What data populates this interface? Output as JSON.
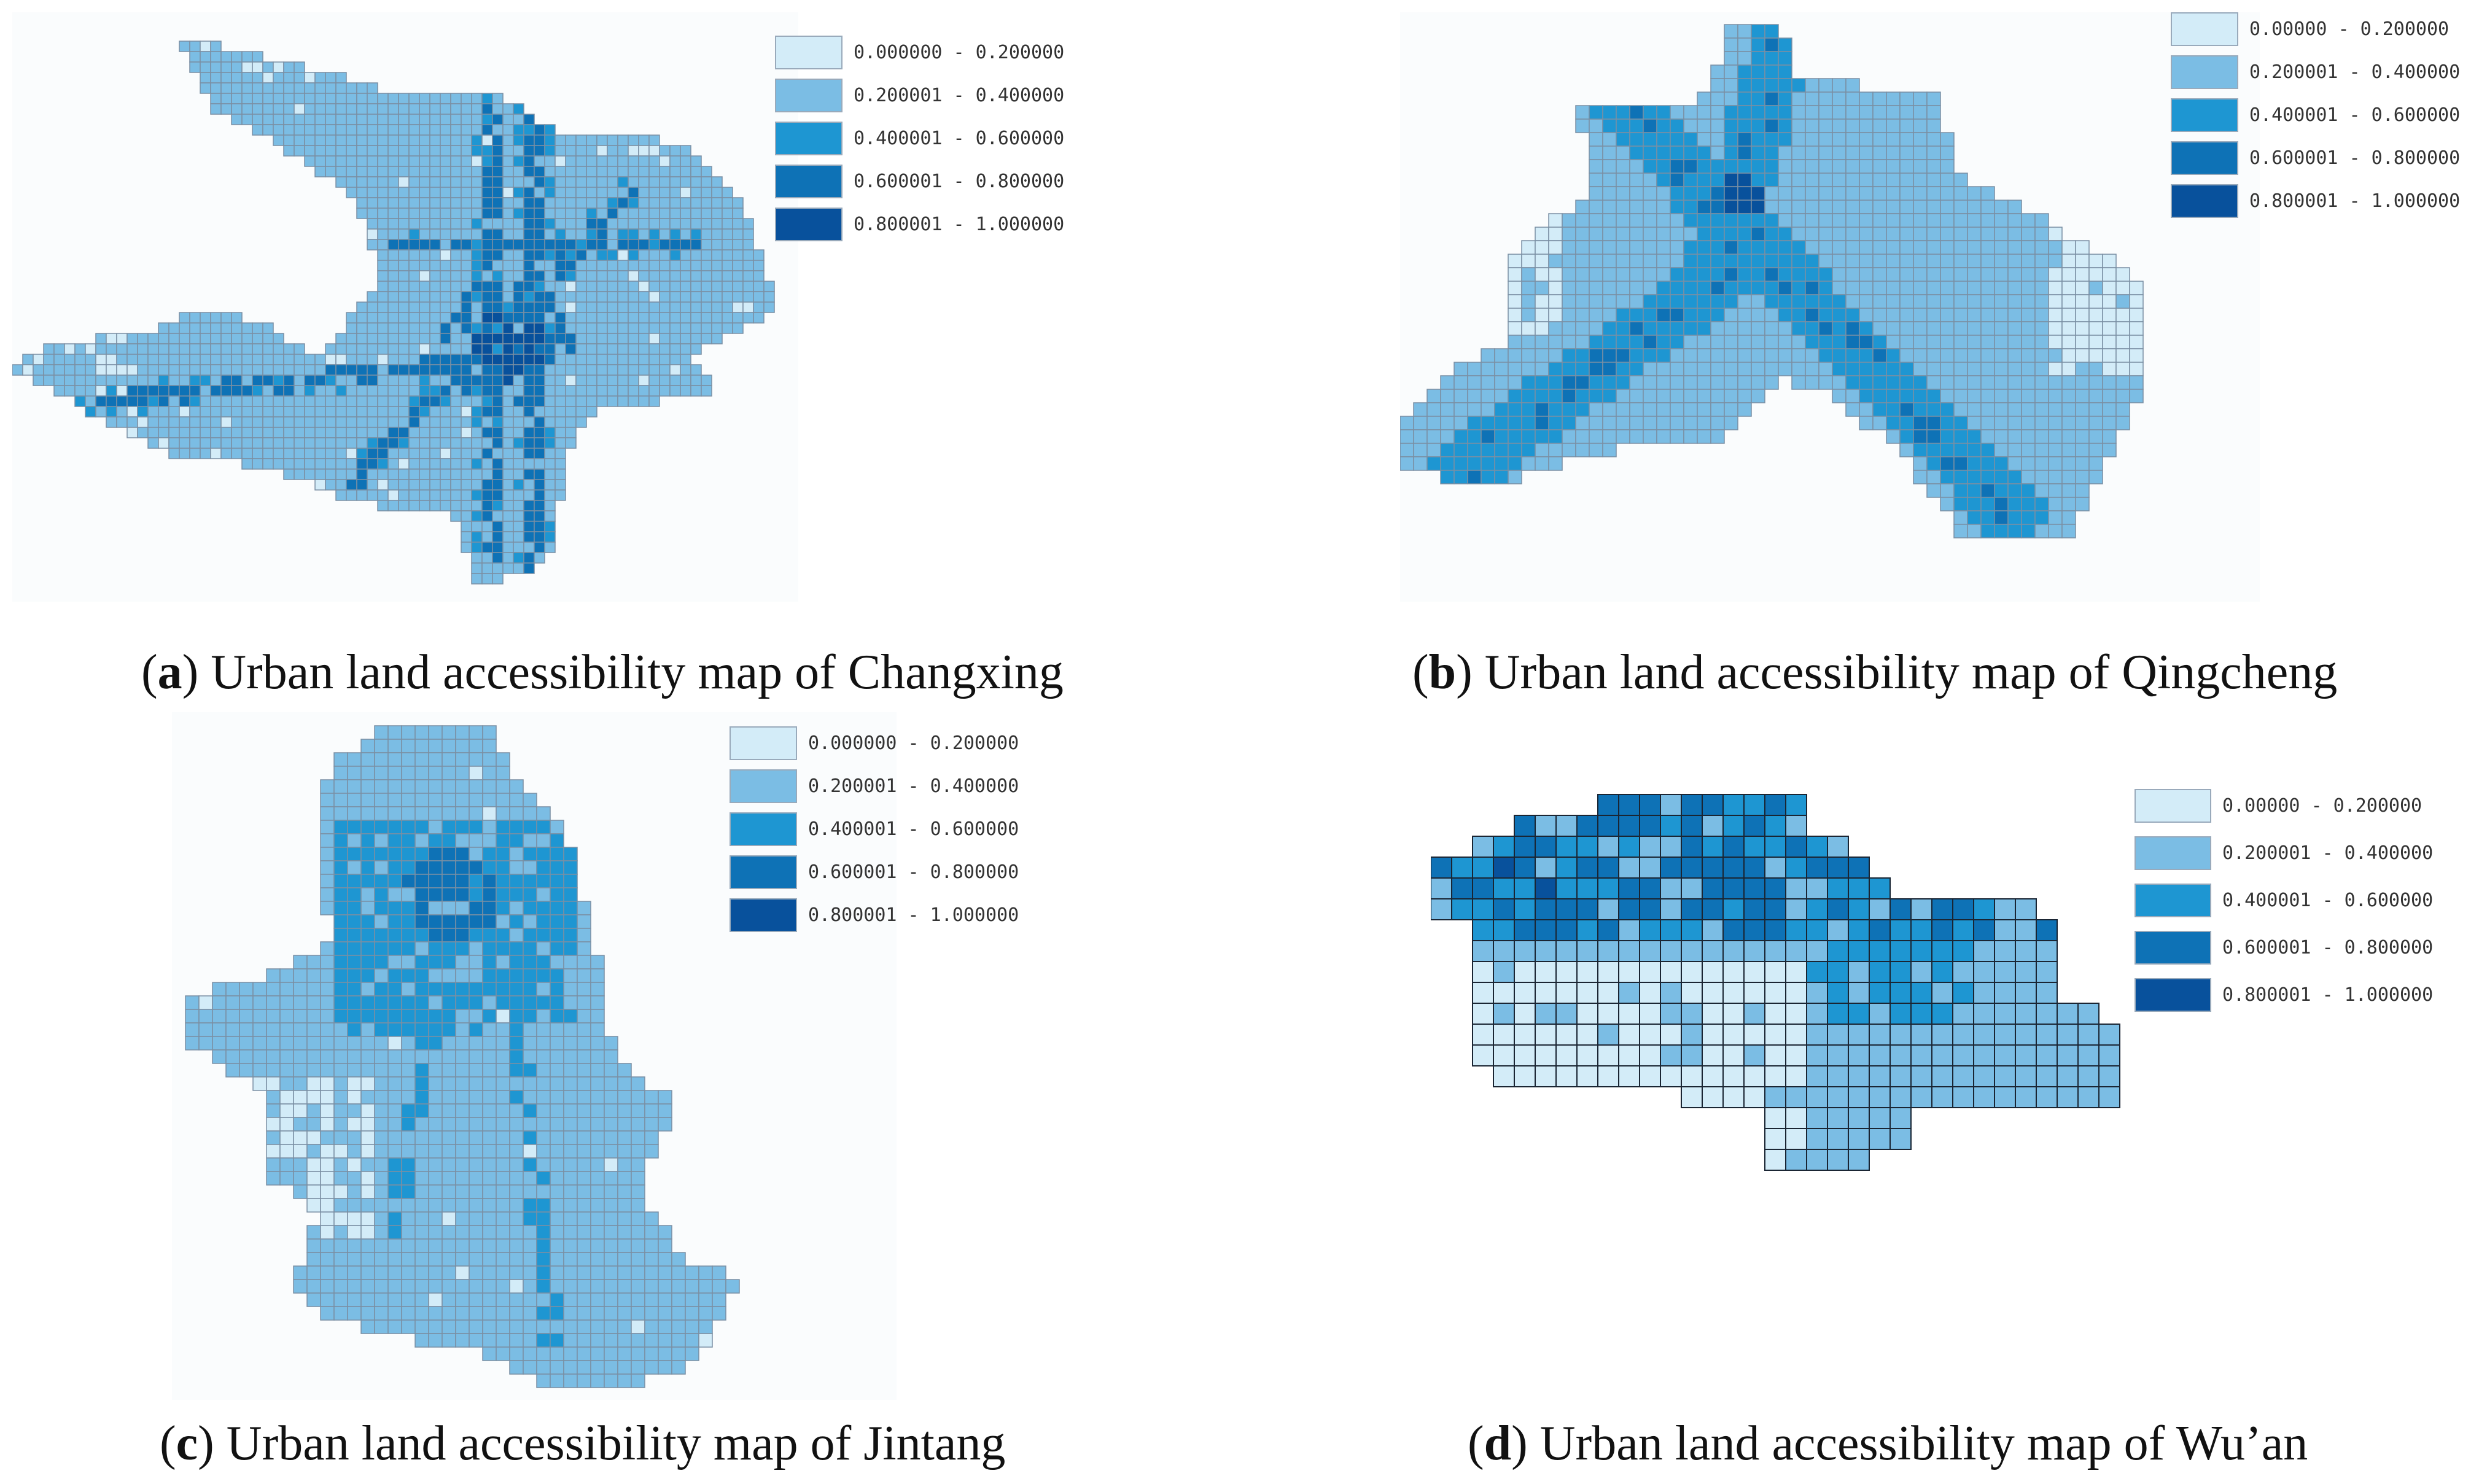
{
  "colors": {
    "class1": "#d3ecf8",
    "class2": "#7bbde4",
    "class3": "#1e96d2",
    "class4": "#0e72b6",
    "class5": "#08519c",
    "grid_line": "#7a8fa3"
  },
  "panels": [
    {
      "id": "a",
      "letter": "a",
      "caption_text": "Urban land accessibility map of Changxing",
      "legend": [
        "0.000000 - 0.200000",
        "0.200001 - 0.400000",
        "0.400001 - 0.600000",
        "0.600001 - 0.800000",
        "0.800001 - 1.000000"
      ]
    },
    {
      "id": "b",
      "letter": "b",
      "caption_text": "Urban land accessibility map of Qingcheng",
      "legend": [
        "0.00000 - 0.200000",
        "0.200001 - 0.400000",
        "0.400001 - 0.600000",
        "0.600001 - 0.800000",
        "0.800001 - 1.000000"
      ]
    },
    {
      "id": "c",
      "letter": "c",
      "caption_text": "Urban land accessibility map of Jintang",
      "legend": [
        "0.000000 - 0.200000",
        "0.200001 - 0.400000",
        "0.400001 - 0.600000",
        "0.600001 - 0.800000",
        "0.800001 - 1.000000"
      ]
    },
    {
      "id": "d",
      "letter": "d",
      "caption_text": "Urban land accessibility map of Wu’an",
      "legend": [
        "0.00000 - 0.200000",
        "0.200001 - 0.400000",
        "0.400001 - 0.600000",
        "0.600001 - 0.800000",
        "0.800001 - 1.000000"
      ]
    }
  ]
}
